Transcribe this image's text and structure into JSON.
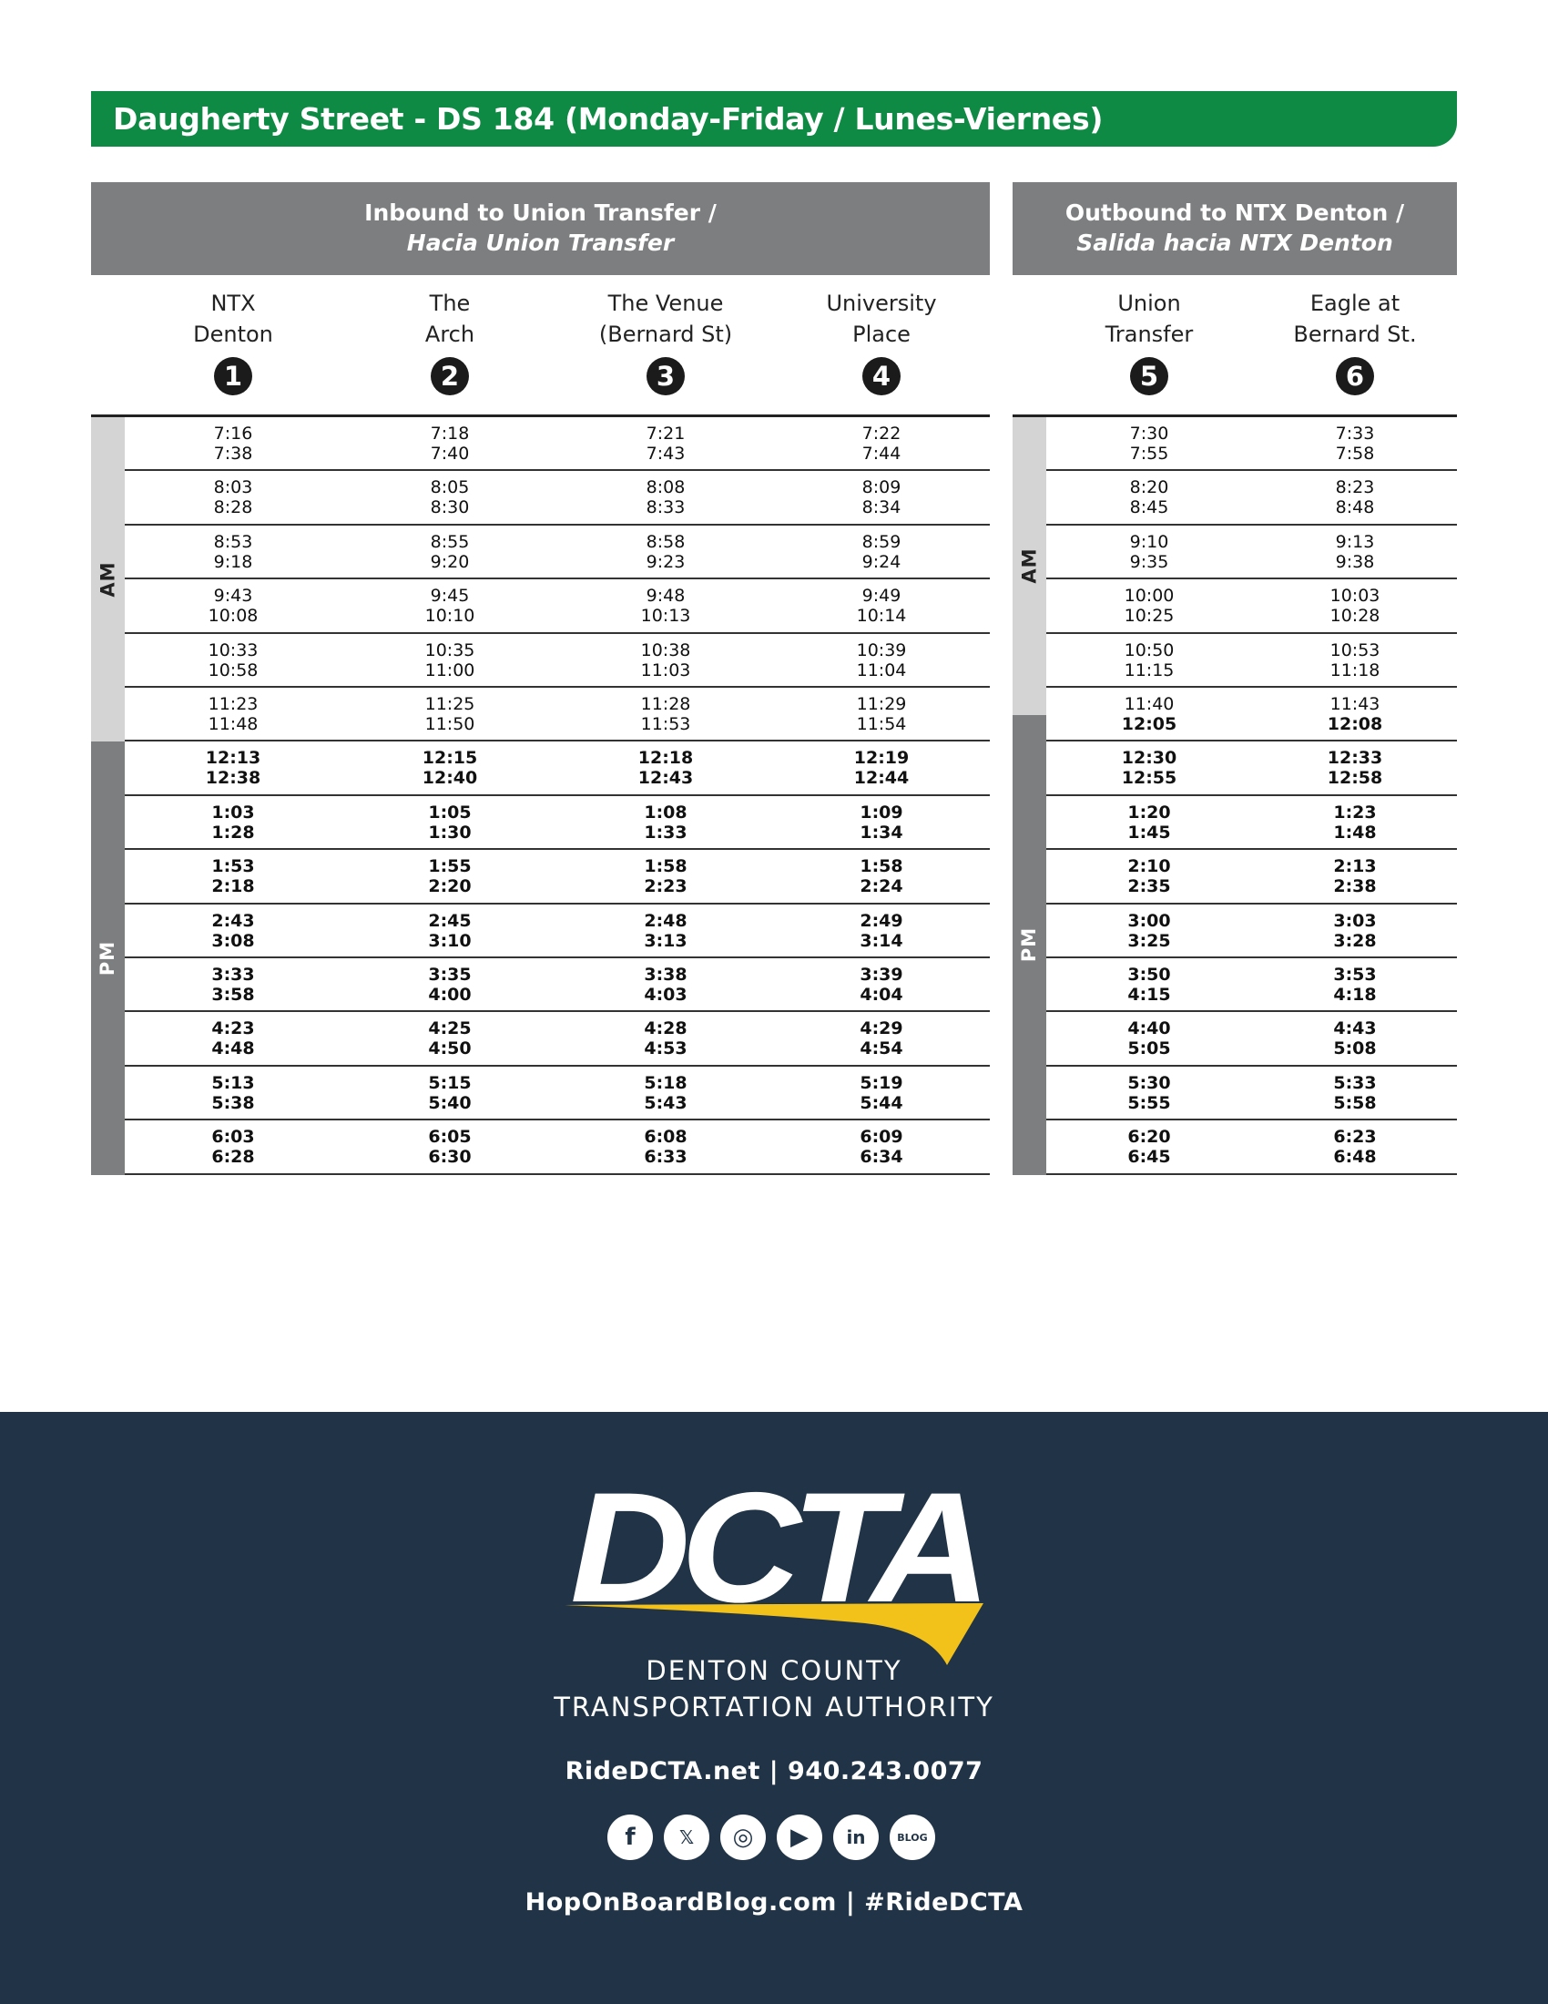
{
  "title": "Daugherty Street - DS 184 (Monday-Friday / Lunes-Viernes)",
  "inbound": {
    "heading_en": "Inbound to Union Transfer /",
    "heading_es": "Hacia Union Transfer",
    "period_am": "AM",
    "period_pm": "PM",
    "stops": [
      {
        "line1": "NTX",
        "line2": "Denton",
        "num": "1"
      },
      {
        "line1": "The",
        "line2": "Arch",
        "num": "2"
      },
      {
        "line1": "The Venue",
        "line2": "(Bernard St)",
        "num": "3"
      },
      {
        "line1": "University",
        "line2": "Place",
        "num": "4"
      }
    ],
    "rows": [
      [
        [
          "7:16",
          "7:38"
        ],
        [
          "7:18",
          "7:40"
        ],
        [
          "7:21",
          "7:43"
        ],
        [
          "7:22",
          "7:44"
        ]
      ],
      [
        [
          "8:03",
          "8:28"
        ],
        [
          "8:05",
          "8:30"
        ],
        [
          "8:08",
          "8:33"
        ],
        [
          "8:09",
          "8:34"
        ]
      ],
      [
        [
          "8:53",
          "9:18"
        ],
        [
          "8:55",
          "9:20"
        ],
        [
          "8:58",
          "9:23"
        ],
        [
          "8:59",
          "9:24"
        ]
      ],
      [
        [
          "9:43",
          "10:08"
        ],
        [
          "9:45",
          "10:10"
        ],
        [
          "9:48",
          "10:13"
        ],
        [
          "9:49",
          "10:14"
        ]
      ],
      [
        [
          "10:33",
          "10:58"
        ],
        [
          "10:35",
          "11:00"
        ],
        [
          "10:38",
          "11:03"
        ],
        [
          "10:39",
          "11:04"
        ]
      ],
      [
        [
          "11:23",
          "11:48"
        ],
        [
          "11:25",
          "11:50"
        ],
        [
          "11:28",
          "11:53"
        ],
        [
          "11:29",
          "11:54"
        ]
      ],
      [
        [
          "12:13",
          "12:38"
        ],
        [
          "12:15",
          "12:40"
        ],
        [
          "12:18",
          "12:43"
        ],
        [
          "12:19",
          "12:44"
        ]
      ],
      [
        [
          "1:03",
          "1:28"
        ],
        [
          "1:05",
          "1:30"
        ],
        [
          "1:08",
          "1:33"
        ],
        [
          "1:09",
          "1:34"
        ]
      ],
      [
        [
          "1:53",
          "2:18"
        ],
        [
          "1:55",
          "2:20"
        ],
        [
          "1:58",
          "2:23"
        ],
        [
          "1:58",
          "2:24"
        ]
      ],
      [
        [
          "2:43",
          "3:08"
        ],
        [
          "2:45",
          "3:10"
        ],
        [
          "2:48",
          "3:13"
        ],
        [
          "2:49",
          "3:14"
        ]
      ],
      [
        [
          "3:33",
          "3:58"
        ],
        [
          "3:35",
          "4:00"
        ],
        [
          "3:38",
          "4:03"
        ],
        [
          "3:39",
          "4:04"
        ]
      ],
      [
        [
          "4:23",
          "4:48"
        ],
        [
          "4:25",
          "4:50"
        ],
        [
          "4:28",
          "4:53"
        ],
        [
          "4:29",
          "4:54"
        ]
      ],
      [
        [
          "5:13",
          "5:38"
        ],
        [
          "5:15",
          "5:40"
        ],
        [
          "5:18",
          "5:43"
        ],
        [
          "5:19",
          "5:44"
        ]
      ],
      [
        [
          "6:03",
          "6:28"
        ],
        [
          "6:05",
          "6:30"
        ],
        [
          "6:08",
          "6:33"
        ],
        [
          "6:09",
          "6:34"
        ]
      ]
    ],
    "bold": [
      [
        [
          false,
          false
        ],
        [
          false,
          false
        ],
        [
          false,
          false
        ],
        [
          false,
          false
        ]
      ],
      [
        [
          false,
          false
        ],
        [
          false,
          false
        ],
        [
          false,
          false
        ],
        [
          false,
          false
        ]
      ],
      [
        [
          false,
          false
        ],
        [
          false,
          false
        ],
        [
          false,
          false
        ],
        [
          false,
          false
        ]
      ],
      [
        [
          false,
          false
        ],
        [
          false,
          false
        ],
        [
          false,
          false
        ],
        [
          false,
          false
        ]
      ],
      [
        [
          false,
          false
        ],
        [
          false,
          false
        ],
        [
          false,
          false
        ],
        [
          false,
          false
        ]
      ],
      [
        [
          false,
          false
        ],
        [
          false,
          false
        ],
        [
          false,
          false
        ],
        [
          false,
          false
        ]
      ],
      [
        [
          true,
          true
        ],
        [
          true,
          true
        ],
        [
          true,
          true
        ],
        [
          true,
          true
        ]
      ],
      [
        [
          true,
          true
        ],
        [
          true,
          true
        ],
        [
          true,
          true
        ],
        [
          true,
          true
        ]
      ],
      [
        [
          true,
          true
        ],
        [
          true,
          true
        ],
        [
          true,
          true
        ],
        [
          true,
          true
        ]
      ],
      [
        [
          true,
          true
        ],
        [
          true,
          true
        ],
        [
          true,
          true
        ],
        [
          true,
          true
        ]
      ],
      [
        [
          true,
          true
        ],
        [
          true,
          true
        ],
        [
          true,
          true
        ],
        [
          true,
          true
        ]
      ],
      [
        [
          true,
          true
        ],
        [
          true,
          true
        ],
        [
          true,
          true
        ],
        [
          true,
          true
        ]
      ],
      [
        [
          true,
          true
        ],
        [
          true,
          true
        ],
        [
          true,
          true
        ],
        [
          true,
          true
        ]
      ],
      [
        [
          true,
          true
        ],
        [
          true,
          true
        ],
        [
          true,
          true
        ],
        [
          true,
          true
        ]
      ]
    ]
  },
  "outbound": {
    "heading_en": "Outbound to NTX Denton /",
    "heading_es": "Salida hacia NTX Denton",
    "period_am": "AM",
    "period_pm": "PM",
    "stops": [
      {
        "line1": "Union",
        "line2": "Transfer",
        "num": "5"
      },
      {
        "line1": "Eagle at",
        "line2": "Bernard St.",
        "num": "6"
      }
    ],
    "rows": [
      [
        [
          "7:30",
          "7:55"
        ],
        [
          "7:33",
          "7:58"
        ]
      ],
      [
        [
          "8:20",
          "8:45"
        ],
        [
          "8:23",
          "8:48"
        ]
      ],
      [
        [
          "9:10",
          "9:35"
        ],
        [
          "9:13",
          "9:38"
        ]
      ],
      [
        [
          "10:00",
          "10:25"
        ],
        [
          "10:03",
          "10:28"
        ]
      ],
      [
        [
          "10:50",
          "11:15"
        ],
        [
          "10:53",
          "11:18"
        ]
      ],
      [
        [
          "11:40",
          "12:05"
        ],
        [
          "11:43",
          "12:08"
        ]
      ],
      [
        [
          "12:30",
          "12:55"
        ],
        [
          "12:33",
          "12:58"
        ]
      ],
      [
        [
          "1:20",
          "1:45"
        ],
        [
          "1:23",
          "1:48"
        ]
      ],
      [
        [
          "2:10",
          "2:35"
        ],
        [
          "2:13",
          "2:38"
        ]
      ],
      [
        [
          "3:00",
          "3:25"
        ],
        [
          "3:03",
          "3:28"
        ]
      ],
      [
        [
          "3:50",
          "4:15"
        ],
        [
          "3:53",
          "4:18"
        ]
      ],
      [
        [
          "4:40",
          "5:05"
        ],
        [
          "4:43",
          "5:08"
        ]
      ],
      [
        [
          "5:30",
          "5:55"
        ],
        [
          "5:33",
          "5:58"
        ]
      ],
      [
        [
          "6:20",
          "6:45"
        ],
        [
          "6:23",
          "6:48"
        ]
      ]
    ],
    "bold": [
      [
        [
          false,
          false
        ],
        [
          false,
          false
        ]
      ],
      [
        [
          false,
          false
        ],
        [
          false,
          false
        ]
      ],
      [
        [
          false,
          false
        ],
        [
          false,
          false
        ]
      ],
      [
        [
          false,
          false
        ],
        [
          false,
          false
        ]
      ],
      [
        [
          false,
          false
        ],
        [
          false,
          false
        ]
      ],
      [
        [
          false,
          true
        ],
        [
          false,
          true
        ]
      ],
      [
        [
          true,
          true
        ],
        [
          true,
          true
        ]
      ],
      [
        [
          true,
          true
        ],
        [
          true,
          true
        ]
      ],
      [
        [
          true,
          true
        ],
        [
          true,
          true
        ]
      ],
      [
        [
          true,
          true
        ],
        [
          true,
          true
        ]
      ],
      [
        [
          true,
          true
        ],
        [
          true,
          true
        ]
      ],
      [
        [
          true,
          true
        ],
        [
          true,
          true
        ]
      ],
      [
        [
          true,
          true
        ],
        [
          true,
          true
        ]
      ],
      [
        [
          true,
          true
        ],
        [
          true,
          true
        ]
      ]
    ]
  },
  "footer": {
    "logo_text": "DCTA",
    "agency_line1": "DENTON COUNTY",
    "agency_line2": "TRANSPORTATION AUTHORITY",
    "contact": "RideDCTA.net  |  940.243.0077",
    "socials": [
      {
        "icon": "facebook-icon",
        "glyph": "f"
      },
      {
        "icon": "x-icon",
        "glyph": "𝕏"
      },
      {
        "icon": "instagram-icon",
        "glyph": "◎"
      },
      {
        "icon": "youtube-icon",
        "glyph": "▶"
      },
      {
        "icon": "linkedin-icon",
        "glyph": "in"
      },
      {
        "icon": "blog-icon",
        "glyph": "BLOG"
      }
    ],
    "blog_line": "HopOnBoardBlog.com  |  #RideDCTA"
  },
  "colors": {
    "title_green": "#0e8a44",
    "header_gray": "#7d7e80",
    "am_band": "#d4d4d5",
    "footer_navy": "#213447",
    "logo_yellow": "#f2c21b"
  }
}
